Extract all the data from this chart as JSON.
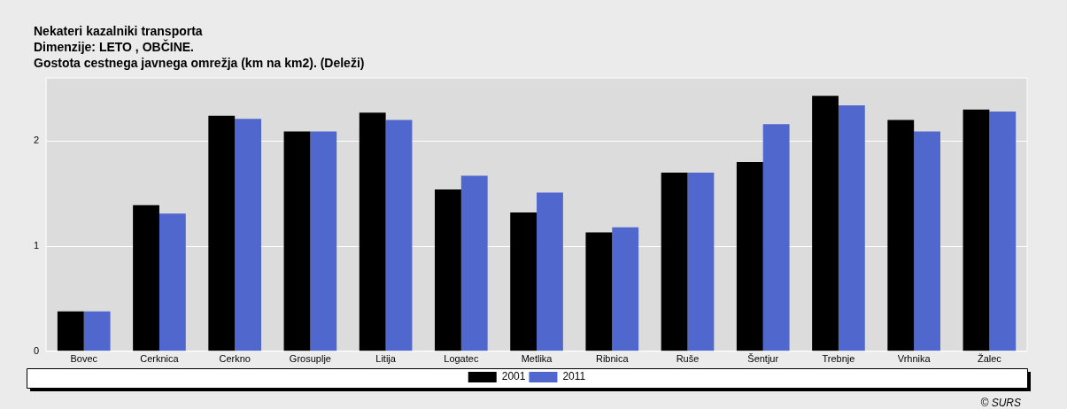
{
  "chart_data": {
    "type": "bar",
    "title": "Nekateri kazalniki transporta",
    "subtitle": "Dimenzije: LETO , OBČINE.\nGostota cestnega javnega omrežja (km na km2). (Deleži)",
    "categories": [
      "Bovec",
      "Cerknica",
      "Cerkno",
      "Grosuplje",
      "Litija",
      "Logatec",
      "Metlika",
      "Ribnica",
      "Ruše",
      "Šentjur",
      "Trebnje",
      "Vrhnika",
      "Žalec"
    ],
    "series": [
      {
        "name": "2001",
        "color": "#000000",
        "values": [
          0.38,
          1.39,
          2.24,
          2.09,
          2.27,
          1.54,
          1.32,
          1.13,
          1.7,
          1.8,
          2.43,
          2.2,
          2.3
        ]
      },
      {
        "name": "2011",
        "color": "#5068cd",
        "values": [
          0.38,
          1.31,
          2.21,
          2.09,
          2.2,
          1.67,
          1.51,
          1.18,
          1.7,
          2.16,
          2.34,
          2.09,
          2.28
        ]
      }
    ],
    "ylim": [
      0,
      2.6
    ],
    "yticks": [
      0,
      1,
      2
    ],
    "grid": "y",
    "legend": "bottom",
    "annotations": [
      "© SURS"
    ]
  }
}
